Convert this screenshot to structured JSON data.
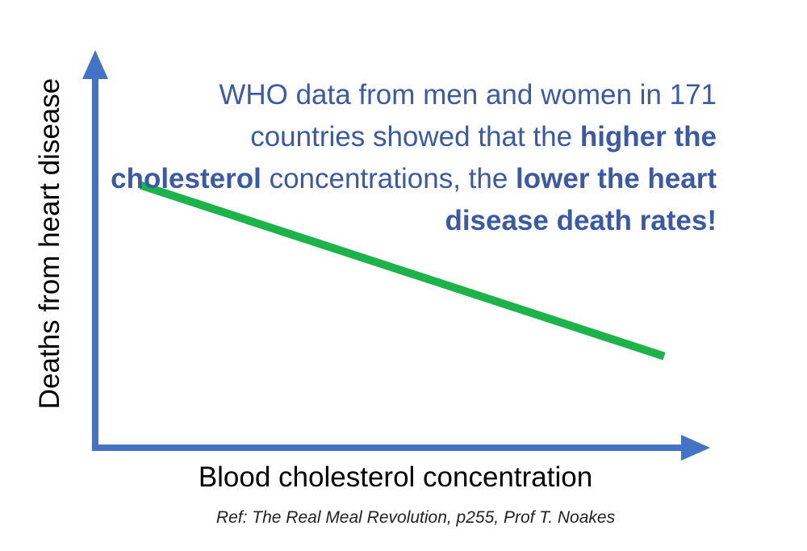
{
  "chart_data": {
    "type": "line",
    "xlabel": "Blood cholesterol concentration",
    "ylabel": "Deaths from heart disease",
    "series": [
      {
        "x": [
          0.08,
          1.0
        ],
        "y": [
          0.66,
          0.23
        ]
      }
    ],
    "xlim": [
      0,
      1.05
    ],
    "ylim": [
      0,
      1.0
    ],
    "grid": false,
    "annotation": {
      "segments": [
        {
          "text": "WHO data from men and women in 171 countries showed that the ",
          "bold": false
        },
        {
          "text": "higher the cholesterol",
          "bold": true
        },
        {
          "text": " concentrations, the ",
          "bold": false
        },
        {
          "text": "lower the heart disease death rates!",
          "bold": true
        }
      ]
    },
    "reference": "Ref: The Real Meal Revolution, p255, Prof T. Noakes"
  },
  "colors": {
    "axis": "#4472c4",
    "line": "#1db34a",
    "annotation_text": "#3b5aa3"
  }
}
